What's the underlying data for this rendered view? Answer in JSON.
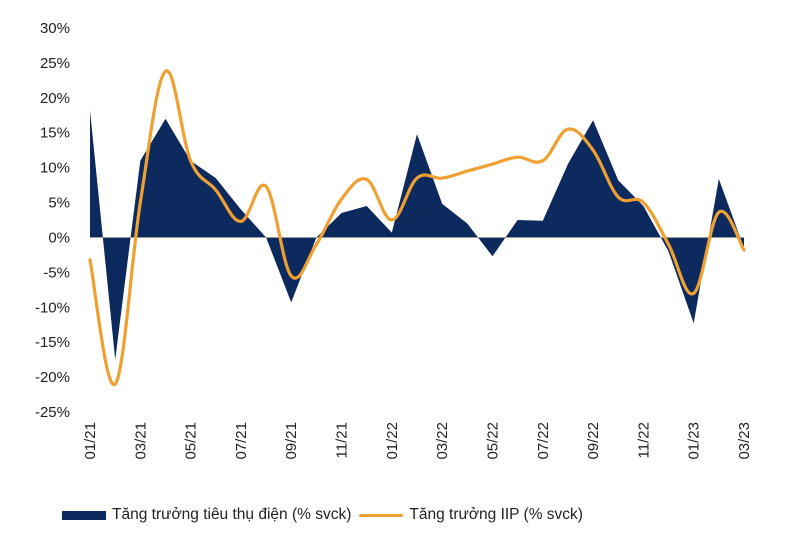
{
  "chart_data": {
    "type": "area+line",
    "title": "",
    "xlabel": "",
    "ylabel": "",
    "ylim": [
      -25,
      30
    ],
    "yticks": [
      30,
      25,
      20,
      15,
      10,
      5,
      0,
      -5,
      -10,
      -15,
      -20,
      -25
    ],
    "ytick_labels": [
      "30%",
      "25%",
      "20%",
      "15%",
      "10%",
      "5%",
      "0%",
      "-5%",
      "-10%",
      "-15%",
      "-20%",
      "-25%"
    ],
    "months": [
      "01/21",
      "02/21",
      "03/21",
      "04/21",
      "05/21",
      "06/21",
      "07/21",
      "08/21",
      "09/21",
      "10/21",
      "11/21",
      "12/21",
      "01/22",
      "02/22",
      "03/22",
      "04/22",
      "05/22",
      "06/22",
      "07/22",
      "08/22",
      "09/22",
      "10/22",
      "11/22",
      "12/22",
      "01/23",
      "02/23",
      "03/23"
    ],
    "xtick_labels": [
      "01/21",
      "03/21",
      "05/21",
      "07/21",
      "09/21",
      "11/21",
      "01/22",
      "03/22",
      "05/22",
      "07/22",
      "09/22",
      "11/22",
      "01/23",
      "03/23"
    ],
    "series": [
      {
        "name": "Tăng trưởng tiêu thụ điện (% svck)",
        "kind": "area",
        "color": "#0d2a5e",
        "values": [
          18.2,
          -17.5,
          11.0,
          17.0,
          11.0,
          8.5,
          4.0,
          0.0,
          -9.3,
          0.0,
          3.5,
          4.5,
          0.7,
          14.8,
          4.8,
          2.0,
          -2.7,
          2.5,
          2.4,
          10.5,
          16.8,
          8.2,
          4.5,
          -2.0,
          -12.3,
          8.4,
          -1.5
        ]
      },
      {
        "name": "Tăng trưởng IIP (% svck)",
        "kind": "line",
        "color": "#f0a030",
        "values": [
          -3.2,
          -21.0,
          5.0,
          23.8,
          11.0,
          6.8,
          2.3,
          7.3,
          -5.5,
          -1.0,
          5.5,
          8.3,
          2.5,
          8.5,
          8.5,
          9.5,
          10.5,
          11.5,
          11.0,
          15.5,
          12.5,
          5.8,
          5.0,
          -1.0,
          -8.0,
          3.6,
          -1.8
        ]
      }
    ],
    "legend_position": "bottom"
  },
  "legend": {
    "item1": "Tăng trưởng tiêu thụ điện (% svck)",
    "item2": "Tăng trưởng IIP (% svck)"
  }
}
